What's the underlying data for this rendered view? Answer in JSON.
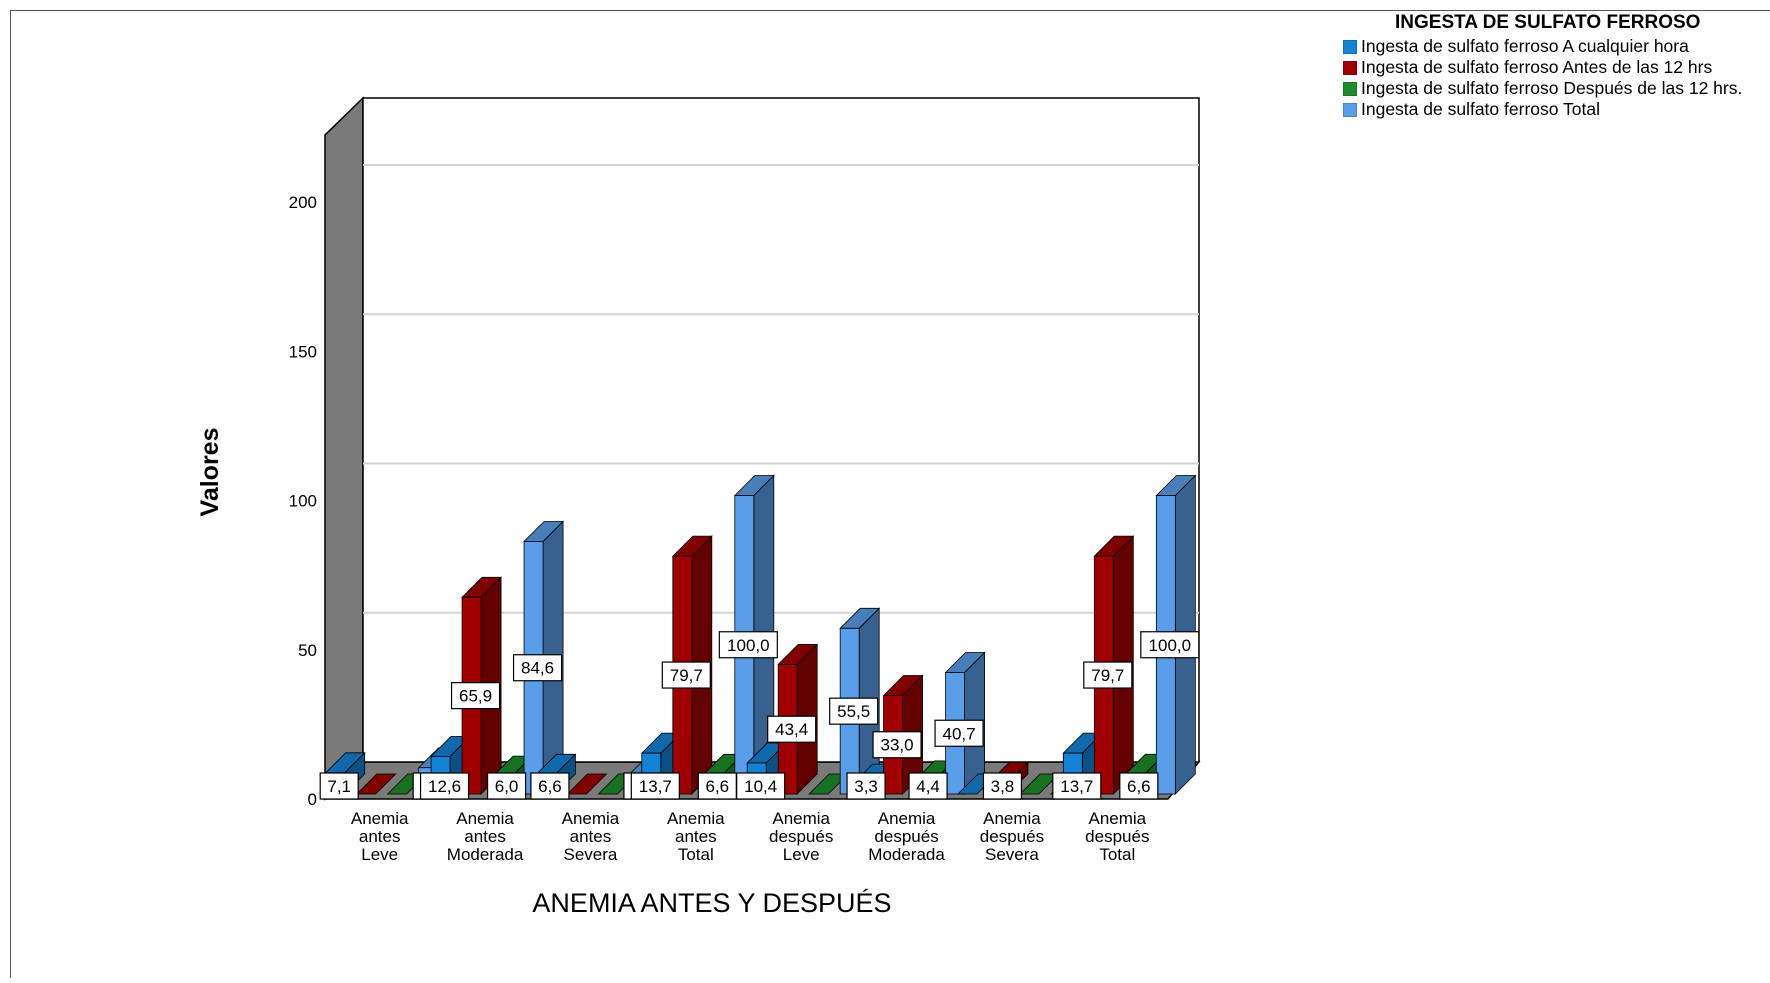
{
  "chart_data": {
    "type": "bar",
    "style": "3d-clustered",
    "ylabel": "Valores",
    "xlabel": "ANEMIA ANTES Y DESPUÉS",
    "ylim": [
      0,
      230
    ],
    "yticks": [
      "0",
      "50",
      "100",
      "150",
      "200"
    ],
    "grid": true,
    "legend_position": "top-right",
    "legend_title": "INGESTA DE SULFATO FERROSO",
    "categories": [
      [
        "Anemia",
        "antes",
        "Leve"
      ],
      [
        "Anemia",
        "antes",
        "Moderada"
      ],
      [
        "Anemia",
        "antes",
        "Severa"
      ],
      [
        "Anemia",
        "antes",
        "Total"
      ],
      [
        "Anemia",
        "después",
        "Leve"
      ],
      [
        "Anemia",
        "después",
        "Moderada"
      ],
      [
        "Anemia",
        "después",
        "Severa"
      ],
      [
        "Anemia",
        "después",
        "Total"
      ]
    ],
    "series": [
      {
        "name": "Ingesta de sulfato ferroso A cualquier hora",
        "color": "#1483d6",
        "values": [
          7.1,
          12.6,
          6.6,
          13.7,
          10.4,
          3.3,
          0,
          13.7
        ],
        "labels": [
          "7,1",
          "12,6",
          "6,6",
          "13,7",
          "10,4",
          "3,3",
          "",
          "13,7"
        ]
      },
      {
        "name": "Ingesta de sulfato ferroso Antes de las 12 hrs",
        "color": "#a00000",
        "values": [
          0,
          65.9,
          0,
          79.7,
          43.4,
          33.0,
          3.8,
          79.7
        ],
        "labels": [
          "",
          "65,9",
          "",
          "79,7",
          "43,4",
          "33,0",
          "3,8",
          "79,7"
        ]
      },
      {
        "name": "Ingesta de sulfato ferroso Después de las 12 hrs.",
        "color": "#1e8c2a",
        "values": [
          0,
          6.0,
          0,
          6.6,
          0,
          4.4,
          0,
          6.6
        ],
        "labels": [
          "",
          "6,0",
          "",
          "6,6",
          "",
          "4,4",
          "",
          "6,6"
        ]
      },
      {
        "name": "Ingesta de sulfato ferroso Total",
        "color": "#5a9de8",
        "values": [
          8.8,
          84.6,
          6.6,
          100.0,
          55.5,
          40.7,
          0,
          100.0
        ],
        "labels": [
          "8,8",
          "84,6",
          "6,6",
          "100,0",
          "55,5",
          "40,7",
          "",
          "100,0"
        ]
      }
    ]
  }
}
